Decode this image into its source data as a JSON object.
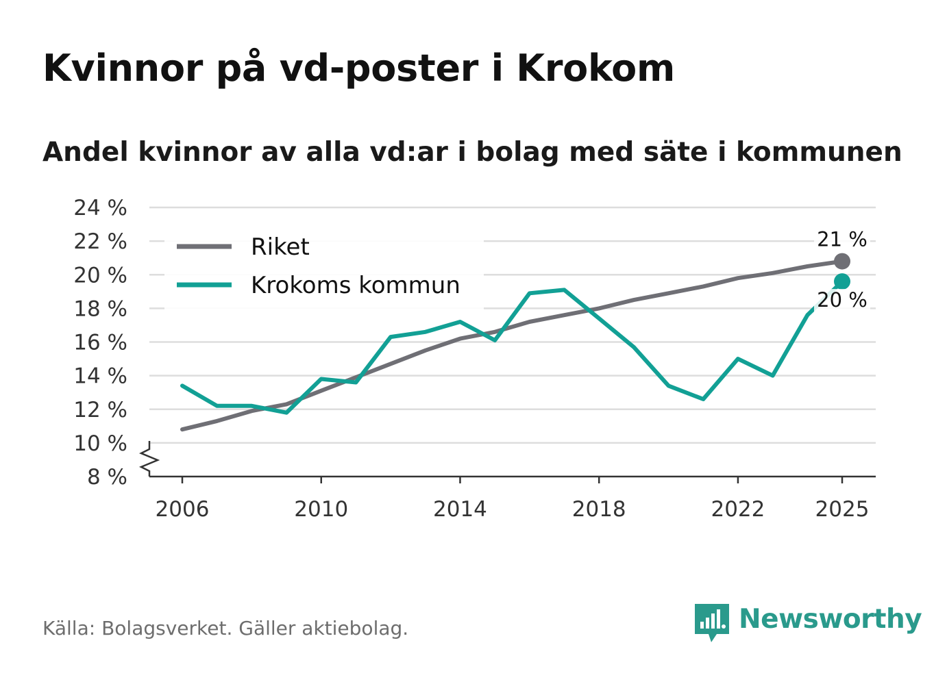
{
  "header": {
    "title": "Kvinnor på vd-poster i Krokom",
    "subtitle": "Andel kvinnor av alla vd:ar i bolag med säte i kommunen"
  },
  "footer": {
    "source": "Källa: Bolagsverket. Gäller aktiebolag.",
    "brand": "Newsworthy",
    "brand_icon": "newsworthy-logo-icon"
  },
  "colors": {
    "riket": "#6f6f75",
    "krokom": "#12a095",
    "grid": "#dddddd",
    "axis": "#333333"
  },
  "chart_data": {
    "type": "line",
    "title": "Kvinnor på vd-poster i Krokom",
    "subtitle": "Andel kvinnor av alla vd:ar i bolag med säte i kommunen",
    "xlabel": "",
    "ylabel": "",
    "x": [
      2006,
      2007,
      2008,
      2009,
      2010,
      2011,
      2012,
      2013,
      2014,
      2015,
      2016,
      2017,
      2018,
      2019,
      2020,
      2021,
      2022,
      2023,
      2024,
      2025
    ],
    "x_ticks": [
      2006,
      2010,
      2014,
      2018,
      2022,
      2025
    ],
    "x_tick_labels": [
      "2006",
      "2010",
      "2014",
      "2018",
      "2022",
      "2025"
    ],
    "xlim": [
      2006,
      2025
    ],
    "y_ticks": [
      8,
      10,
      12,
      14,
      16,
      18,
      20,
      22,
      24
    ],
    "y_tick_labels": [
      "8 %",
      "10 %",
      "12 %",
      "14 %",
      "16 %",
      "18 %",
      "20 %",
      "22 %",
      "24 %"
    ],
    "ylim": [
      8,
      24
    ],
    "y_axis_break": true,
    "grid": true,
    "legend_position": "top-left",
    "series": [
      {
        "name": "Riket",
        "values": [
          10.8,
          11.3,
          11.9,
          12.3,
          13.1,
          13.9,
          14.7,
          15.5,
          16.2,
          16.6,
          17.2,
          17.6,
          18.0,
          18.5,
          18.9,
          19.3,
          19.8,
          20.1,
          20.5,
          20.8
        ],
        "end_label": "21 %"
      },
      {
        "name": "Krokoms kommun",
        "values": [
          13.4,
          12.2,
          12.2,
          11.8,
          13.8,
          13.6,
          16.3,
          16.6,
          17.2,
          16.1,
          18.9,
          19.1,
          17.4,
          15.7,
          13.4,
          12.6,
          15.0,
          14.0,
          17.6,
          19.6
        ],
        "end_label": "20 %"
      }
    ]
  }
}
